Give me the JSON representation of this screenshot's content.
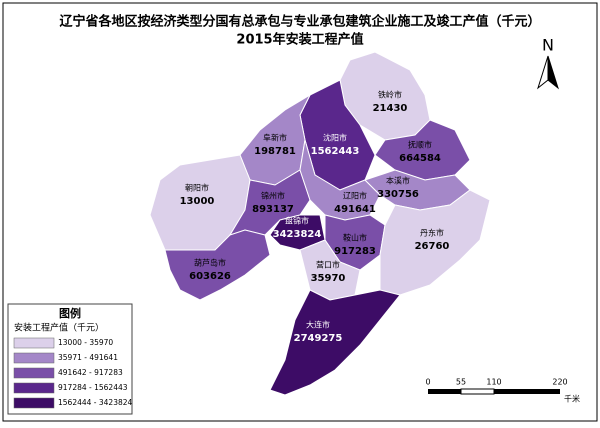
{
  "title": {
    "line1": "辽宁省各地区按经济类型分国有总承包与专业承包建筑企业施工及竣工产值（千元）",
    "line2": "2015年安装工程产值"
  },
  "north": "N",
  "legend": {
    "title": "图例",
    "subtitle": "安装工程产值（千元）",
    "classes": [
      {
        "label": "13000 - 35970",
        "color": "#dcd0ea"
      },
      {
        "label": "35971 - 491641",
        "color": "#a487c8"
      },
      {
        "label": "491642 - 917283",
        "color": "#7a4fa8"
      },
      {
        "label": "917284 - 1562443",
        "color": "#5a278c"
      },
      {
        "label": "1562444 - 3423824",
        "color": "#3d0c66"
      }
    ]
  },
  "cities": [
    {
      "name": "铁岭市",
      "value": 21430,
      "class": 0
    },
    {
      "name": "抚顺市",
      "value": 664584,
      "class": 2
    },
    {
      "name": "沈阳市",
      "value": 1562443,
      "class": 3
    },
    {
      "name": "阜新市",
      "value": 198781,
      "class": 1
    },
    {
      "name": "朝阳市",
      "value": 13000,
      "class": 0
    },
    {
      "name": "锦州市",
      "value": 893137,
      "class": 2
    },
    {
      "name": "盘锦市",
      "value": 3423824,
      "class": 4
    },
    {
      "name": "辽阳市",
      "value": 491641,
      "class": 1
    },
    {
      "name": "本溪市",
      "value": 330756,
      "class": 1
    },
    {
      "name": "鞍山市",
      "value": 917283,
      "class": 2
    },
    {
      "name": "丹东市",
      "value": 26760,
      "class": 0
    },
    {
      "name": "葫芦岛市",
      "value": 603626,
      "class": 2
    },
    {
      "name": "营口市",
      "value": 35970,
      "class": 0
    },
    {
      "name": "大连市",
      "value": 2749275,
      "class": 4
    }
  ],
  "scale": {
    "ticks": [
      "0",
      "55",
      "110",
      "220"
    ],
    "unit": "千米"
  }
}
